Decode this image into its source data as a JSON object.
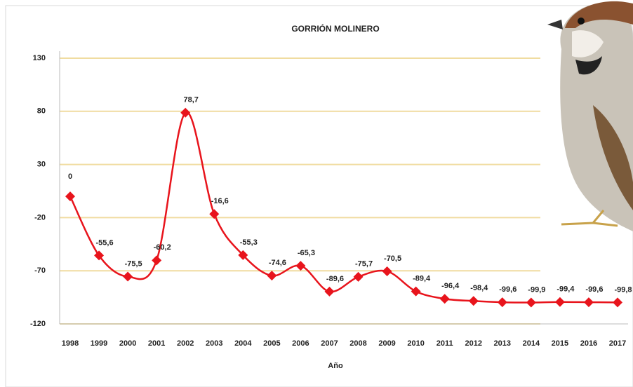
{
  "chart_data": {
    "type": "line",
    "title": "GORRIÓN MOLINERO",
    "x_label": "Año",
    "categories": [
      "1998",
      "1999",
      "2000",
      "2001",
      "2002",
      "2003",
      "2004",
      "2005",
      "2006",
      "2007",
      "2008",
      "2009",
      "2010",
      "2011",
      "2012",
      "2013",
      "2014",
      "2015",
      "2016",
      "2017"
    ],
    "series": [
      {
        "name": "Gorrión molinero",
        "color": "#e8141c",
        "values": [
          0,
          -55.6,
          -75.5,
          -60.2,
          78.7,
          -16.6,
          -55.3,
          -74.6,
          -65.3,
          -89.6,
          -75.7,
          -70.5,
          -89.4,
          -96.4,
          -98.4,
          -99.6,
          -99.9,
          -99.4,
          -99.6,
          -99.8
        ],
        "value_labels": [
          "0",
          "-55,6",
          "-75,5",
          "-60,2",
          "78,7",
          "-16,6",
          "-55,3",
          "-74,6",
          "-65,3",
          "-89,6",
          "-75,7",
          "-70,5",
          "-89,4",
          "-96,4",
          "-98,4",
          "-99,6",
          "-99,9",
          "-99,4",
          "-99,6",
          "-99,8"
        ]
      }
    ],
    "ylim": [
      -120,
      130
    ],
    "yticks": [
      -120,
      -70,
      -20,
      30,
      80,
      130
    ],
    "grid": true,
    "grid_color": "#f0dca0"
  }
}
